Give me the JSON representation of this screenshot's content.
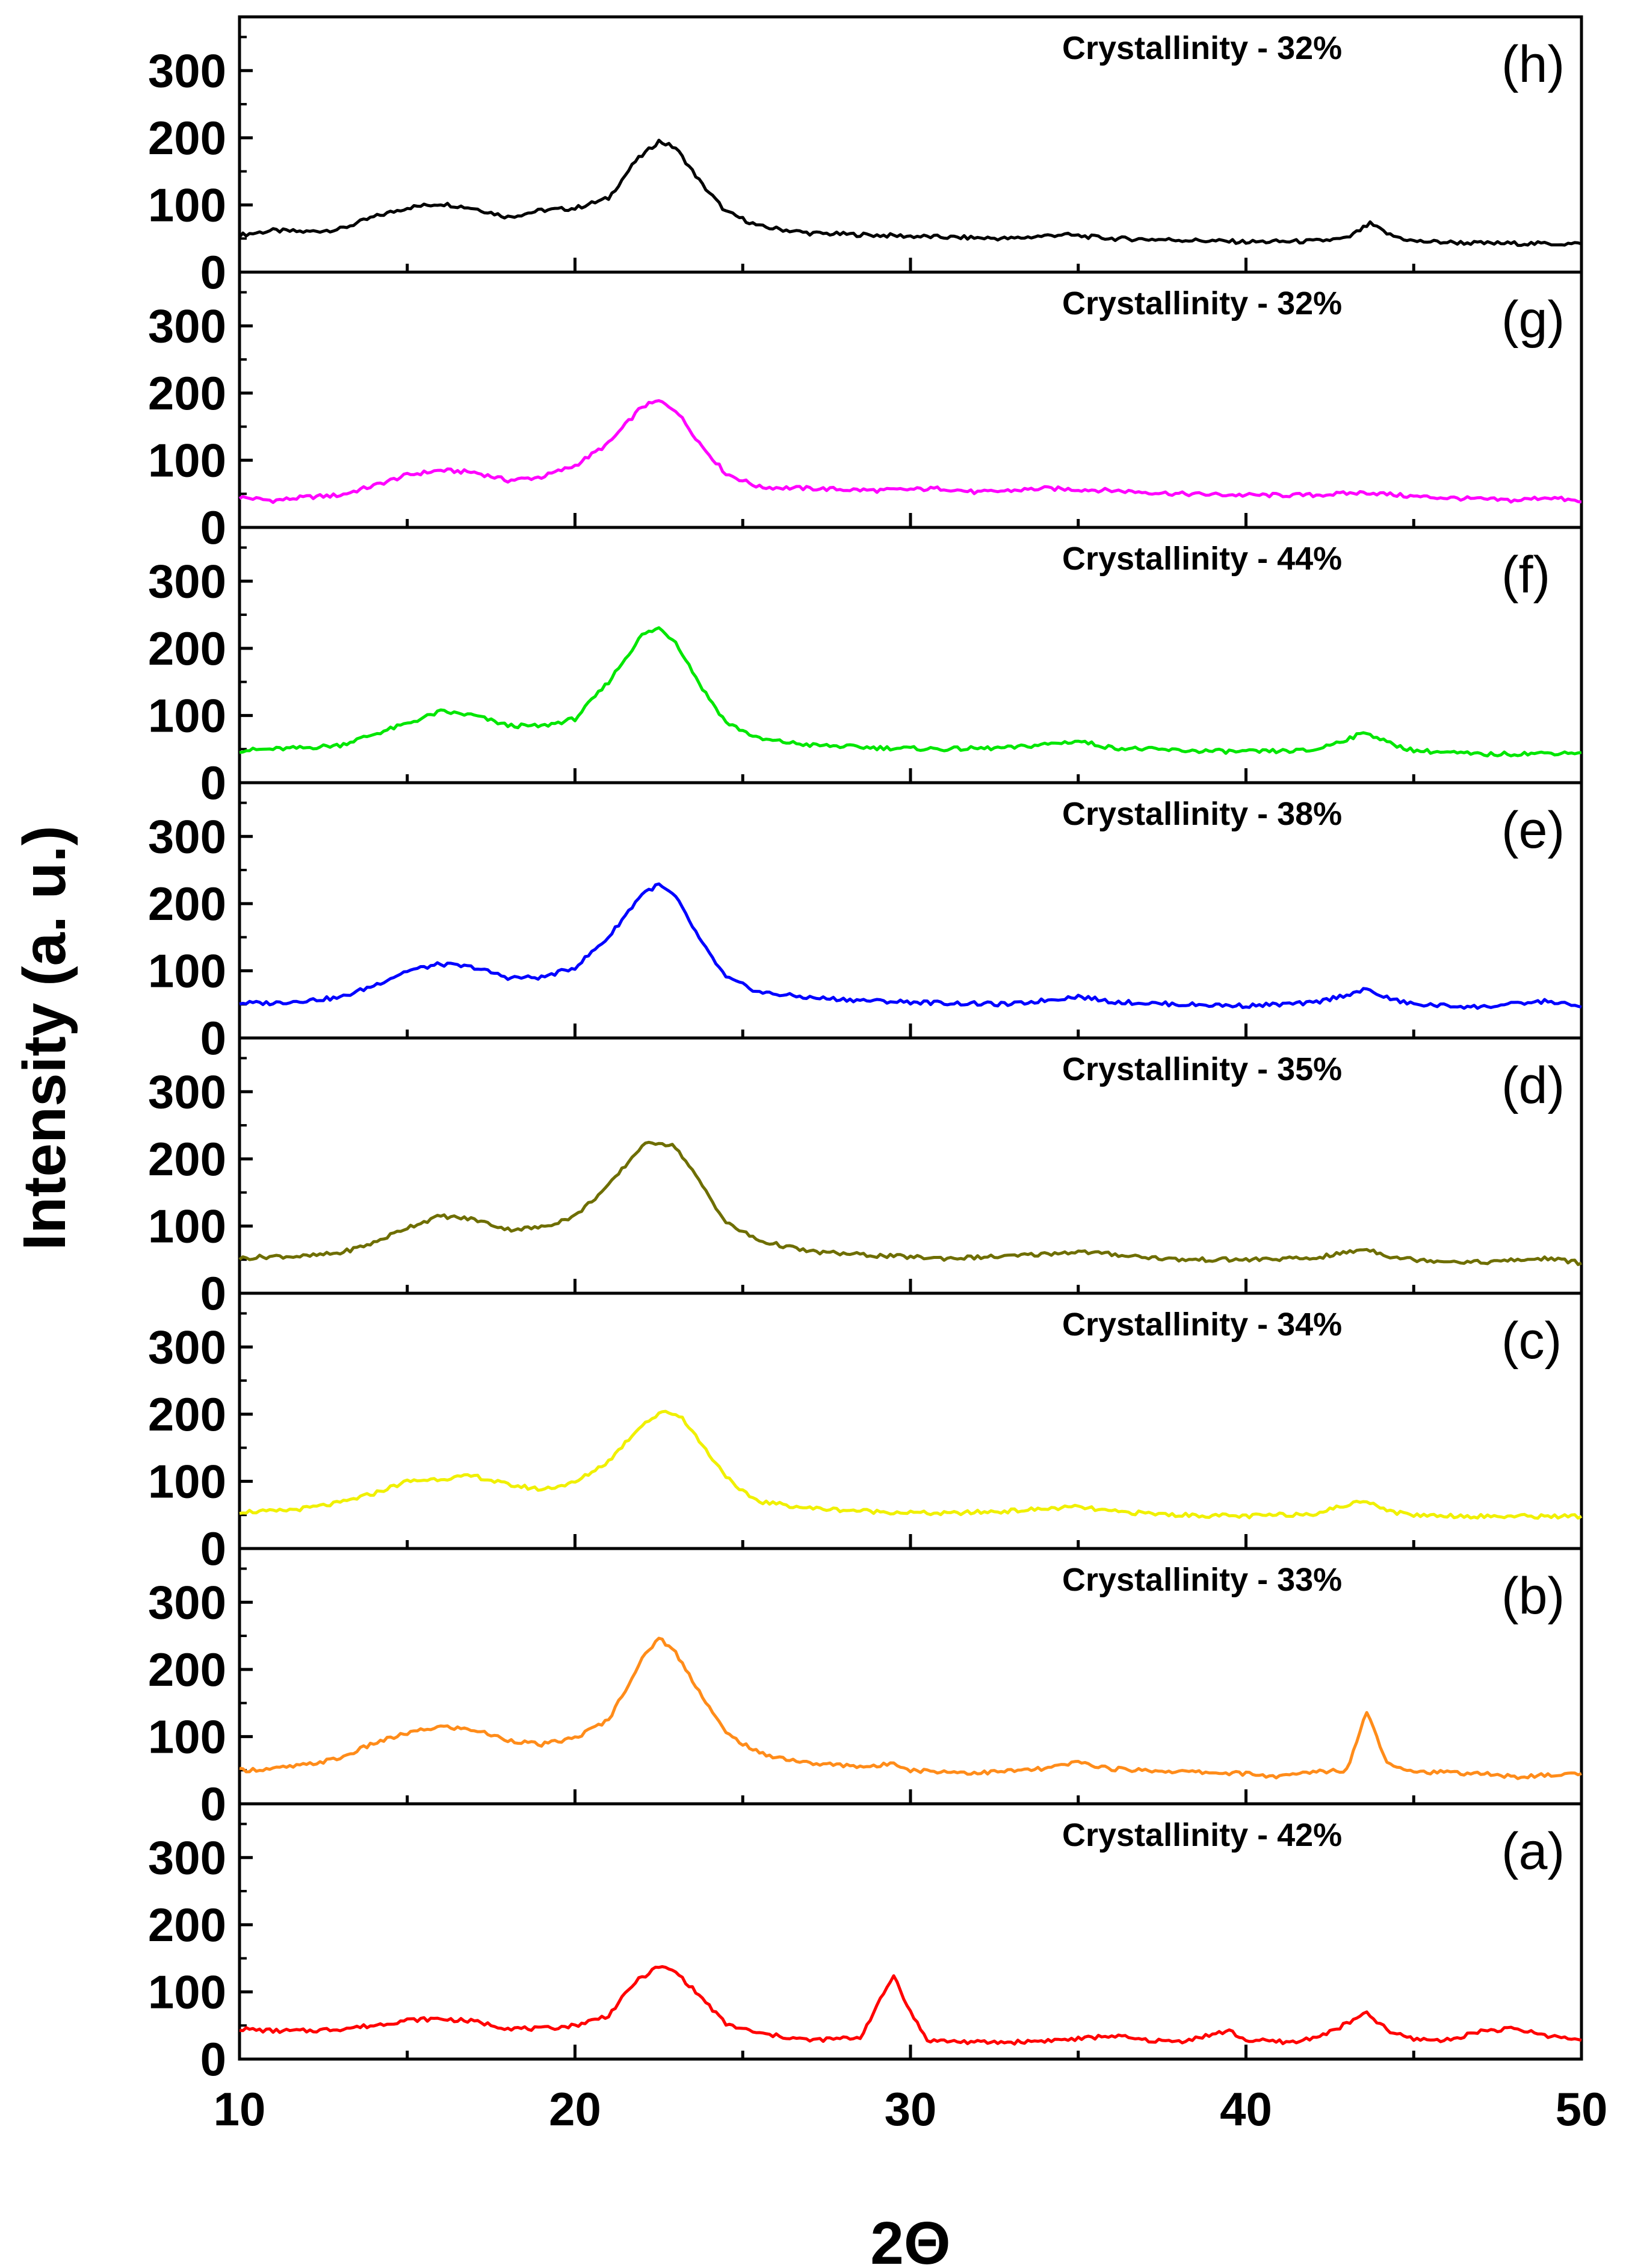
{
  "chart_data": {
    "type": "line",
    "xlabel": "2Θ",
    "ylabel": "Intensity (a. u.)",
    "xlim": [
      10,
      50
    ],
    "ylim": [
      0,
      380
    ],
    "x_ticks": [
      "10",
      "20",
      "30",
      "40",
      "50"
    ],
    "y_ticks": [
      "0",
      "100",
      "200",
      "300"
    ],
    "series": [
      {
        "panel": "(h)",
        "annotation": "Crystallinity - 32%",
        "color": "#000000",
        "points": [
          [
            10,
            55
          ],
          [
            11,
            62
          ],
          [
            12,
            60
          ],
          [
            13,
            64
          ],
          [
            14,
            82
          ],
          [
            15,
            96
          ],
          [
            16,
            102
          ],
          [
            17,
            95
          ],
          [
            18,
            82
          ],
          [
            19,
            92
          ],
          [
            20,
            95
          ],
          [
            21,
            110
          ],
          [
            21.8,
            165
          ],
          [
            22.5,
            195
          ],
          [
            23,
            185
          ],
          [
            23.8,
            130
          ],
          [
            24.5,
            90
          ],
          [
            25.5,
            68
          ],
          [
            27,
            58
          ],
          [
            29,
            55
          ],
          [
            31,
            52
          ],
          [
            33,
            50
          ],
          [
            34.5,
            56
          ],
          [
            36,
            50
          ],
          [
            38,
            48
          ],
          [
            40,
            45
          ],
          [
            42,
            46
          ],
          [
            43,
            50
          ],
          [
            43.7,
            72
          ],
          [
            44.3,
            55
          ],
          [
            45,
            46
          ],
          [
            47,
            43
          ],
          [
            50,
            42
          ]
        ]
      },
      {
        "panel": "(g)",
        "annotation": "Crystallinity - 32%",
        "color": "#ff00ff",
        "points": [
          [
            10,
            45
          ],
          [
            11,
            40
          ],
          [
            12,
            45
          ],
          [
            13,
            48
          ],
          [
            14,
            62
          ],
          [
            15,
            78
          ],
          [
            16,
            85
          ],
          [
            17,
            82
          ],
          [
            18,
            70
          ],
          [
            19,
            75
          ],
          [
            20,
            92
          ],
          [
            21,
            125
          ],
          [
            22,
            180
          ],
          [
            22.5,
            188
          ],
          [
            23,
            175
          ],
          [
            23.8,
            120
          ],
          [
            24.5,
            80
          ],
          [
            25.5,
            60
          ],
          [
            27,
            58
          ],
          [
            29,
            55
          ],
          [
            31,
            58
          ],
          [
            32,
            52
          ],
          [
            34,
            58
          ],
          [
            36,
            55
          ],
          [
            38,
            50
          ],
          [
            40,
            48
          ],
          [
            42,
            48
          ],
          [
            43.6,
            52
          ],
          [
            45,
            46
          ],
          [
            47,
            42
          ],
          [
            48,
            40
          ],
          [
            49,
            45
          ],
          [
            50,
            38
          ]
        ]
      },
      {
        "panel": "(f)",
        "annotation": "Crystallinity - 44%",
        "color": "#00e600",
        "points": [
          [
            10,
            48
          ],
          [
            11,
            50
          ],
          [
            12,
            52
          ],
          [
            13,
            56
          ],
          [
            14,
            72
          ],
          [
            15,
            88
          ],
          [
            16,
            106
          ],
          [
            17,
            100
          ],
          [
            18,
            85
          ],
          [
            19,
            84
          ],
          [
            20,
            95
          ],
          [
            21,
            150
          ],
          [
            22,
            220
          ],
          [
            22.5,
            230
          ],
          [
            23,
            210
          ],
          [
            23.8,
            140
          ],
          [
            24.5,
            90
          ],
          [
            25.5,
            65
          ],
          [
            27,
            56
          ],
          [
            29,
            52
          ],
          [
            31,
            50
          ],
          [
            33,
            52
          ],
          [
            35,
            62
          ],
          [
            36,
            52
          ],
          [
            38,
            48
          ],
          [
            40,
            46
          ],
          [
            42,
            48
          ],
          [
            43.6,
            75
          ],
          [
            44.3,
            58
          ],
          [
            45,
            48
          ],
          [
            47,
            42
          ],
          [
            50,
            45
          ]
        ]
      },
      {
        "panel": "(e)",
        "annotation": "Crystallinity - 38%",
        "color": "#0000ff",
        "points": [
          [
            10,
            52
          ],
          [
            11,
            52
          ],
          [
            12,
            56
          ],
          [
            13,
            60
          ],
          [
            14,
            78
          ],
          [
            15,
            100
          ],
          [
            16,
            110
          ],
          [
            17,
            105
          ],
          [
            18,
            90
          ],
          [
            19,
            90
          ],
          [
            20,
            105
          ],
          [
            21,
            150
          ],
          [
            22,
            215
          ],
          [
            22.5,
            228
          ],
          [
            23,
            210
          ],
          [
            23.8,
            140
          ],
          [
            24.5,
            90
          ],
          [
            25.5,
            68
          ],
          [
            27,
            60
          ],
          [
            29,
            55
          ],
          [
            31,
            52
          ],
          [
            33,
            50
          ],
          [
            35,
            62
          ],
          [
            36,
            54
          ],
          [
            38,
            50
          ],
          [
            40,
            48
          ],
          [
            42,
            52
          ],
          [
            43.6,
            72
          ],
          [
            44.3,
            58
          ],
          [
            45,
            50
          ],
          [
            47,
            46
          ],
          [
            49,
            55
          ],
          [
            50,
            46
          ]
        ]
      },
      {
        "panel": "(d)",
        "annotation": "Crystallinity - 35%",
        "color": "#6e6e00",
        "points": [
          [
            10,
            52
          ],
          [
            11,
            55
          ],
          [
            12,
            55
          ],
          [
            13,
            60
          ],
          [
            14,
            75
          ],
          [
            15,
            98
          ],
          [
            16,
            115
          ],
          [
            17,
            110
          ],
          [
            18,
            95
          ],
          [
            19,
            98
          ],
          [
            20,
            115
          ],
          [
            21,
            160
          ],
          [
            22,
            220
          ],
          [
            22.5,
            225
          ],
          [
            23,
            218
          ],
          [
            23.8,
            160
          ],
          [
            24.5,
            105
          ],
          [
            25.5,
            78
          ],
          [
            27,
            62
          ],
          [
            29,
            56
          ],
          [
            31,
            52
          ],
          [
            33,
            55
          ],
          [
            35,
            62
          ],
          [
            36,
            58
          ],
          [
            38,
            50
          ],
          [
            40,
            50
          ],
          [
            42,
            52
          ],
          [
            43.6,
            66
          ],
          [
            44.3,
            55
          ],
          [
            45,
            50
          ],
          [
            47,
            46
          ],
          [
            49,
            52
          ],
          [
            50,
            45
          ]
        ]
      },
      {
        "panel": "(c)",
        "annotation": "Crystallinity - 34%",
        "color": "#f0f000",
        "points": [
          [
            10,
            55
          ],
          [
            11,
            55
          ],
          [
            12,
            60
          ],
          [
            13,
            68
          ],
          [
            14,
            82
          ],
          [
            15,
            100
          ],
          [
            16,
            104
          ],
          [
            17,
            108
          ],
          [
            18,
            95
          ],
          [
            19,
            88
          ],
          [
            20,
            98
          ],
          [
            21,
            130
          ],
          [
            22,
            185
          ],
          [
            22.7,
            205
          ],
          [
            23.2,
            195
          ],
          [
            24,
            140
          ],
          [
            24.8,
            90
          ],
          [
            25.5,
            70
          ],
          [
            27,
            60
          ],
          [
            29,
            55
          ],
          [
            31,
            52
          ],
          [
            33,
            56
          ],
          [
            35,
            62
          ],
          [
            36,
            55
          ],
          [
            38,
            50
          ],
          [
            40,
            48
          ],
          [
            42,
            52
          ],
          [
            43.6,
            72
          ],
          [
            44.3,
            55
          ],
          [
            45,
            50
          ],
          [
            47,
            48
          ],
          [
            50,
            48
          ]
        ]
      },
      {
        "panel": "(b)",
        "annotation": "Crystallinity - 33%",
        "color": "#ff8c1a",
        "points": [
          [
            10,
            50
          ],
          [
            11,
            52
          ],
          [
            12,
            58
          ],
          [
            13,
            68
          ],
          [
            14,
            90
          ],
          [
            15,
            105
          ],
          [
            16,
            115
          ],
          [
            17,
            110
          ],
          [
            18,
            95
          ],
          [
            19,
            88
          ],
          [
            20,
            98
          ],
          [
            21,
            125
          ],
          [
            22,
            215
          ],
          [
            22.5,
            248
          ],
          [
            23,
            225
          ],
          [
            23.8,
            160
          ],
          [
            24.5,
            105
          ],
          [
            25.5,
            75
          ],
          [
            27,
            60
          ],
          [
            29,
            55
          ],
          [
            29.5,
            62
          ],
          [
            30,
            50
          ],
          [
            32,
            46
          ],
          [
            34,
            52
          ],
          [
            35,
            62
          ],
          [
            36,
            52
          ],
          [
            38,
            48
          ],
          [
            40,
            45
          ],
          [
            41,
            40
          ],
          [
            42,
            48
          ],
          [
            43,
            50
          ],
          [
            43.6,
            138
          ],
          [
            44.2,
            62
          ],
          [
            45,
            48
          ],
          [
            47,
            45
          ],
          [
            48,
            40
          ],
          [
            50,
            45
          ]
        ]
      },
      {
        "panel": "(a)",
        "annotation": "Crystallinity - 42%",
        "color": "#ff0000",
        "points": [
          [
            10,
            45
          ],
          [
            11,
            42
          ],
          [
            12,
            42
          ],
          [
            13,
            45
          ],
          [
            14,
            50
          ],
          [
            15,
            58
          ],
          [
            16,
            60
          ],
          [
            17,
            56
          ],
          [
            18,
            46
          ],
          [
            19,
            45
          ],
          [
            20,
            50
          ],
          [
            21,
            65
          ],
          [
            21.8,
            115
          ],
          [
            22.5,
            138
          ],
          [
            23,
            130
          ],
          [
            23.8,
            90
          ],
          [
            24.5,
            52
          ],
          [
            25.5,
            38
          ],
          [
            27,
            28
          ],
          [
            28.5,
            32
          ],
          [
            29.5,
            125
          ],
          [
            30,
            70
          ],
          [
            30.5,
            28
          ],
          [
            32,
            25
          ],
          [
            33,
            25
          ],
          [
            35,
            30
          ],
          [
            36,
            35
          ],
          [
            37,
            28
          ],
          [
            38,
            26
          ],
          [
            39.5,
            42
          ],
          [
            40,
            28
          ],
          [
            41.5,
            25
          ],
          [
            42.5,
            40
          ],
          [
            43.6,
            68
          ],
          [
            44.3,
            40
          ],
          [
            45,
            30
          ],
          [
            46,
            28
          ],
          [
            47,
            42
          ],
          [
            48,
            45
          ],
          [
            49,
            35
          ],
          [
            50,
            28
          ]
        ]
      }
    ]
  }
}
